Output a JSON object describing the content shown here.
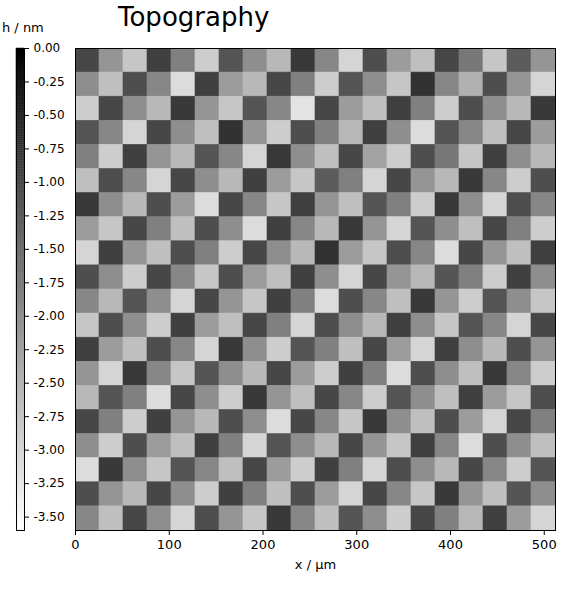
{
  "chart_data": {
    "type": "heatmap",
    "title": "Topography",
    "x_label": "x / µm",
    "xlim": [
      0,
      512
    ],
    "ylim": [
      0,
      512
    ],
    "xticks": [
      0,
      100,
      200,
      300,
      400,
      500
    ],
    "tick_labels": "x",
    "z": [
      [
        -1.0,
        -2.1,
        -2.8,
        -0.9,
        -1.8,
        -2.9,
        -1.2,
        -2.0,
        -2.6,
        -0.8,
        -1.9,
        -3.0,
        -1.1,
        -2.2,
        -2.7,
        -1.0,
        -1.7,
        -2.8,
        -1.3,
        -2.1
      ],
      [
        -2.0,
        -2.7,
        -1.1,
        -1.9,
        -3.1,
        -0.9,
        -2.2,
        -2.6,
        -1.0,
        -1.8,
        -2.9,
        -1.2,
        -2.0,
        -2.8,
        -0.7,
        -1.9,
        -2.5,
        -1.1,
        -2.1,
        -3.0
      ],
      [
        -2.9,
        -1.0,
        -2.0,
        -2.6,
        -0.8,
        -2.1,
        -2.8,
        -1.2,
        -1.9,
        -3.2,
        -1.0,
        -2.2,
        -2.7,
        -0.9,
        -1.8,
        -2.9,
        -1.1,
        -2.0,
        -2.6,
        -0.8
      ],
      [
        -1.2,
        -1.9,
        -3.0,
        -1.0,
        -2.0,
        -2.7,
        -0.7,
        -2.1,
        -2.9,
        -1.1,
        -1.8,
        -2.6,
        -0.9,
        -2.0,
        -3.1,
        -1.2,
        -1.9,
        -2.7,
        -1.0,
        -2.2
      ],
      [
        -1.8,
        -2.9,
        -0.9,
        -2.1,
        -2.6,
        -1.2,
        -1.9,
        -3.0,
        -0.8,
        -2.0,
        -2.7,
        -1.0,
        -2.3,
        -2.9,
        -1.1,
        -1.7,
        -2.8,
        -0.9,
        -2.0,
        -2.6
      ],
      [
        -2.7,
        -1.1,
        -1.9,
        -3.0,
        -1.0,
        -2.0,
        -2.6,
        -0.9,
        -2.2,
        -2.8,
        -1.3,
        -1.8,
        -3.0,
        -1.0,
        -2.1,
        -2.6,
        -0.8,
        -1.9,
        -2.9,
        -1.1
      ],
      [
        -0.8,
        -2.0,
        -2.6,
        -1.1,
        -2.2,
        -3.1,
        -1.0,
        -1.9,
        -2.8,
        -0.9,
        -2.1,
        -2.7,
        -1.2,
        -1.8,
        -2.9,
        -0.8,
        -2.0,
        -3.0,
        -1.1,
        -1.9
      ],
      [
        -2.2,
        -2.8,
        -1.0,
        -1.8,
        -2.7,
        -1.1,
        -2.0,
        -3.1,
        -0.9,
        -1.9,
        -2.6,
        -0.8,
        -2.1,
        -3.0,
        -1.2,
        -2.0,
        -2.7,
        -1.0,
        -1.8,
        -2.9
      ],
      [
        -3.0,
        -0.9,
        -2.1,
        -2.7,
        -1.1,
        -1.8,
        -2.9,
        -1.0,
        -2.0,
        -2.6,
        -0.7,
        -2.2,
        -2.8,
        -1.1,
        -1.9,
        -3.1,
        -1.0,
        -2.1,
        -2.7,
        -0.9
      ],
      [
        -1.1,
        -2.0,
        -2.9,
        -1.0,
        -1.9,
        -2.8,
        -1.1,
        -2.2,
        -2.7,
        -0.9,
        -2.0,
        -3.0,
        -1.0,
        -2.1,
        -2.6,
        -1.2,
        -1.8,
        -2.9,
        -0.9,
        -2.0
      ],
      [
        -1.9,
        -2.6,
        -1.2,
        -2.0,
        -3.0,
        -1.0,
        -2.1,
        -2.8,
        -0.9,
        -1.8,
        -3.1,
        -1.1,
        -1.9,
        -2.7,
        -0.8,
        -2.1,
        -2.9,
        -1.2,
        -2.0,
        -2.8
      ],
      [
        -2.8,
        -1.1,
        -2.0,
        -2.9,
        -0.9,
        -2.2,
        -2.7,
        -1.0,
        -1.8,
        -3.0,
        -1.1,
        -2.0,
        -2.6,
        -0.9,
        -2.0,
        -2.8,
        -1.2,
        -1.9,
        -3.0,
        -1.0
      ],
      [
        -0.9,
        -2.2,
        -2.7,
        -1.1,
        -1.9,
        -3.0,
        -0.8,
        -2.0,
        -2.9,
        -1.2,
        -1.8,
        -2.7,
        -1.0,
        -2.2,
        -3.0,
        -0.9,
        -2.0,
        -2.6,
        -1.1,
        -2.1
      ],
      [
        -2.1,
        -3.0,
        -0.8,
        -1.9,
        -2.8,
        -1.2,
        -2.0,
        -2.6,
        -1.0,
        -2.2,
        -2.9,
        -0.9,
        -1.8,
        -3.1,
        -1.1,
        -2.0,
        -2.7,
        -0.8,
        -1.9,
        -2.9
      ],
      [
        -2.6,
        -1.2,
        -1.8,
        -3.1,
        -1.0,
        -2.0,
        -2.9,
        -0.8,
        -2.1,
        -2.7,
        -1.0,
        -1.9,
        -2.9,
        -1.2,
        -2.0,
        -2.7,
        -0.9,
        -2.2,
        -2.8,
        -1.1
      ],
      [
        -1.0,
        -1.8,
        -2.9,
        -0.9,
        -2.1,
        -2.6,
        -1.1,
        -2.0,
        -3.1,
        -1.0,
        -1.9,
        -2.8,
        -0.8,
        -2.0,
        -2.7,
        -1.1,
        -2.2,
        -3.0,
        -1.0,
        -1.8
      ],
      [
        -2.0,
        -2.9,
        -1.1,
        -2.2,
        -2.7,
        -0.9,
        -1.8,
        -3.0,
        -1.2,
        -2.0,
        -2.6,
        -1.0,
        -2.1,
        -2.8,
        -0.9,
        -1.9,
        -3.1,
        -1.1,
        -2.0,
        -2.7
      ],
      [
        -3.1,
        -0.8,
        -2.0,
        -2.8,
        -1.2,
        -1.9,
        -2.7,
        -1.0,
        -2.2,
        -2.9,
        -0.9,
        -1.8,
        -3.0,
        -1.1,
        -2.0,
        -2.6,
        -1.0,
        -1.9,
        -2.9,
        -1.2
      ],
      [
        -1.1,
        -2.1,
        -2.6,
        -1.0,
        -2.0,
        -2.9,
        -0.9,
        -1.8,
        -2.7,
        -1.1,
        -2.2,
        -3.0,
        -1.0,
        -1.9,
        -2.8,
        -0.8,
        -2.1,
        -2.7,
        -1.2,
        -2.0
      ],
      [
        -1.9,
        -2.7,
        -1.0,
        -2.0,
        -3.0,
        -1.1,
        -2.1,
        -2.8,
        -0.8,
        -1.9,
        -2.7,
        -1.2,
        -2.0,
        -2.9,
        -1.0,
        -1.8,
        -2.6,
        -0.9,
        -2.2,
        -3.0
      ]
    ],
    "colorbar_label": "h / nm",
    "colorbar_lim": [
      -3.6,
      0
    ],
    "colorbar_ticks": [
      {
        "value": 0,
        "label": "0.00"
      },
      {
        "value": -0.25,
        "label": "-0.25"
      },
      {
        "value": -0.5,
        "label": "-0.50"
      },
      {
        "value": -0.75,
        "label": "-0.75"
      },
      {
        "value": -1,
        "label": "-1.00"
      },
      {
        "value": -1.25,
        "label": "-1.25"
      },
      {
        "value": -1.5,
        "label": "-1.50"
      },
      {
        "value": -1.75,
        "label": "-1.75"
      },
      {
        "value": -2,
        "label": "-2.00"
      },
      {
        "value": -2.25,
        "label": "-2.25"
      },
      {
        "value": -2.5,
        "label": "-2.50"
      },
      {
        "value": -2.75,
        "label": "-2.75"
      },
      {
        "value": -3,
        "label": "-3.00"
      },
      {
        "value": -3.25,
        "label": "-3.25"
      },
      {
        "value": -3.5,
        "label": "-3.50"
      }
    ]
  }
}
